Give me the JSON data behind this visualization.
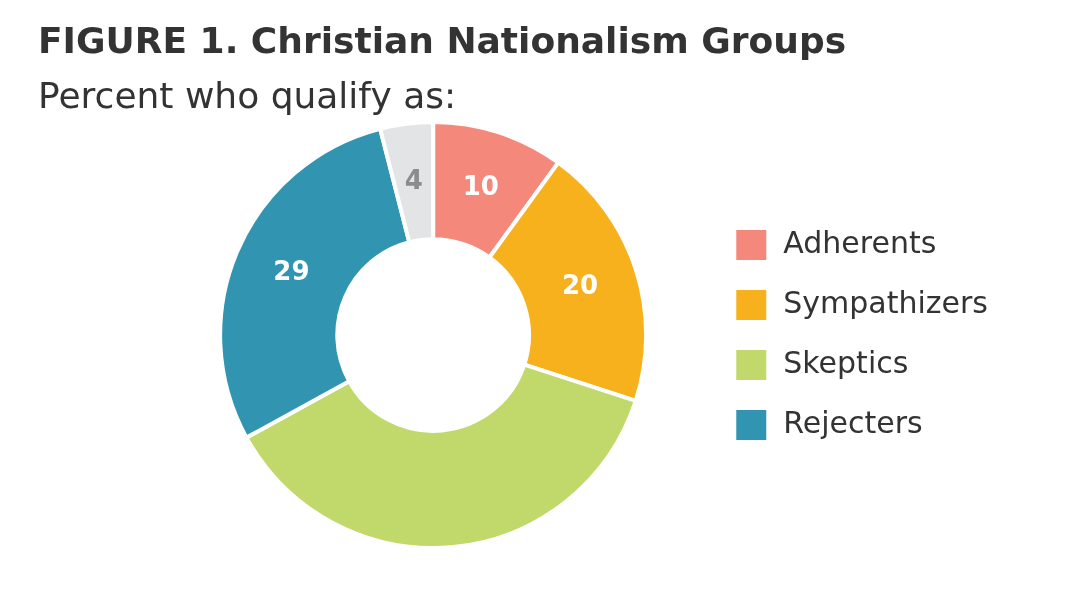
{
  "chart_data": {
    "type": "donut",
    "title": "FIGURE 1.  Christian Nationalism Groups",
    "subtitle": "Percent who qualify as:",
    "categories": [
      "Adherents",
      "Sympathizers",
      "Skeptics",
      "Rejecters",
      null
    ],
    "values": [
      10,
      20,
      37,
      29,
      4
    ],
    "colors": [
      "#f4897b",
      "#f6b11d",
      "#c1d86a",
      "#3194b1",
      "#e3e4e6"
    ],
    "value_labels": [
      "10",
      "20",
      null,
      "29",
      "4"
    ],
    "legend": "right"
  }
}
